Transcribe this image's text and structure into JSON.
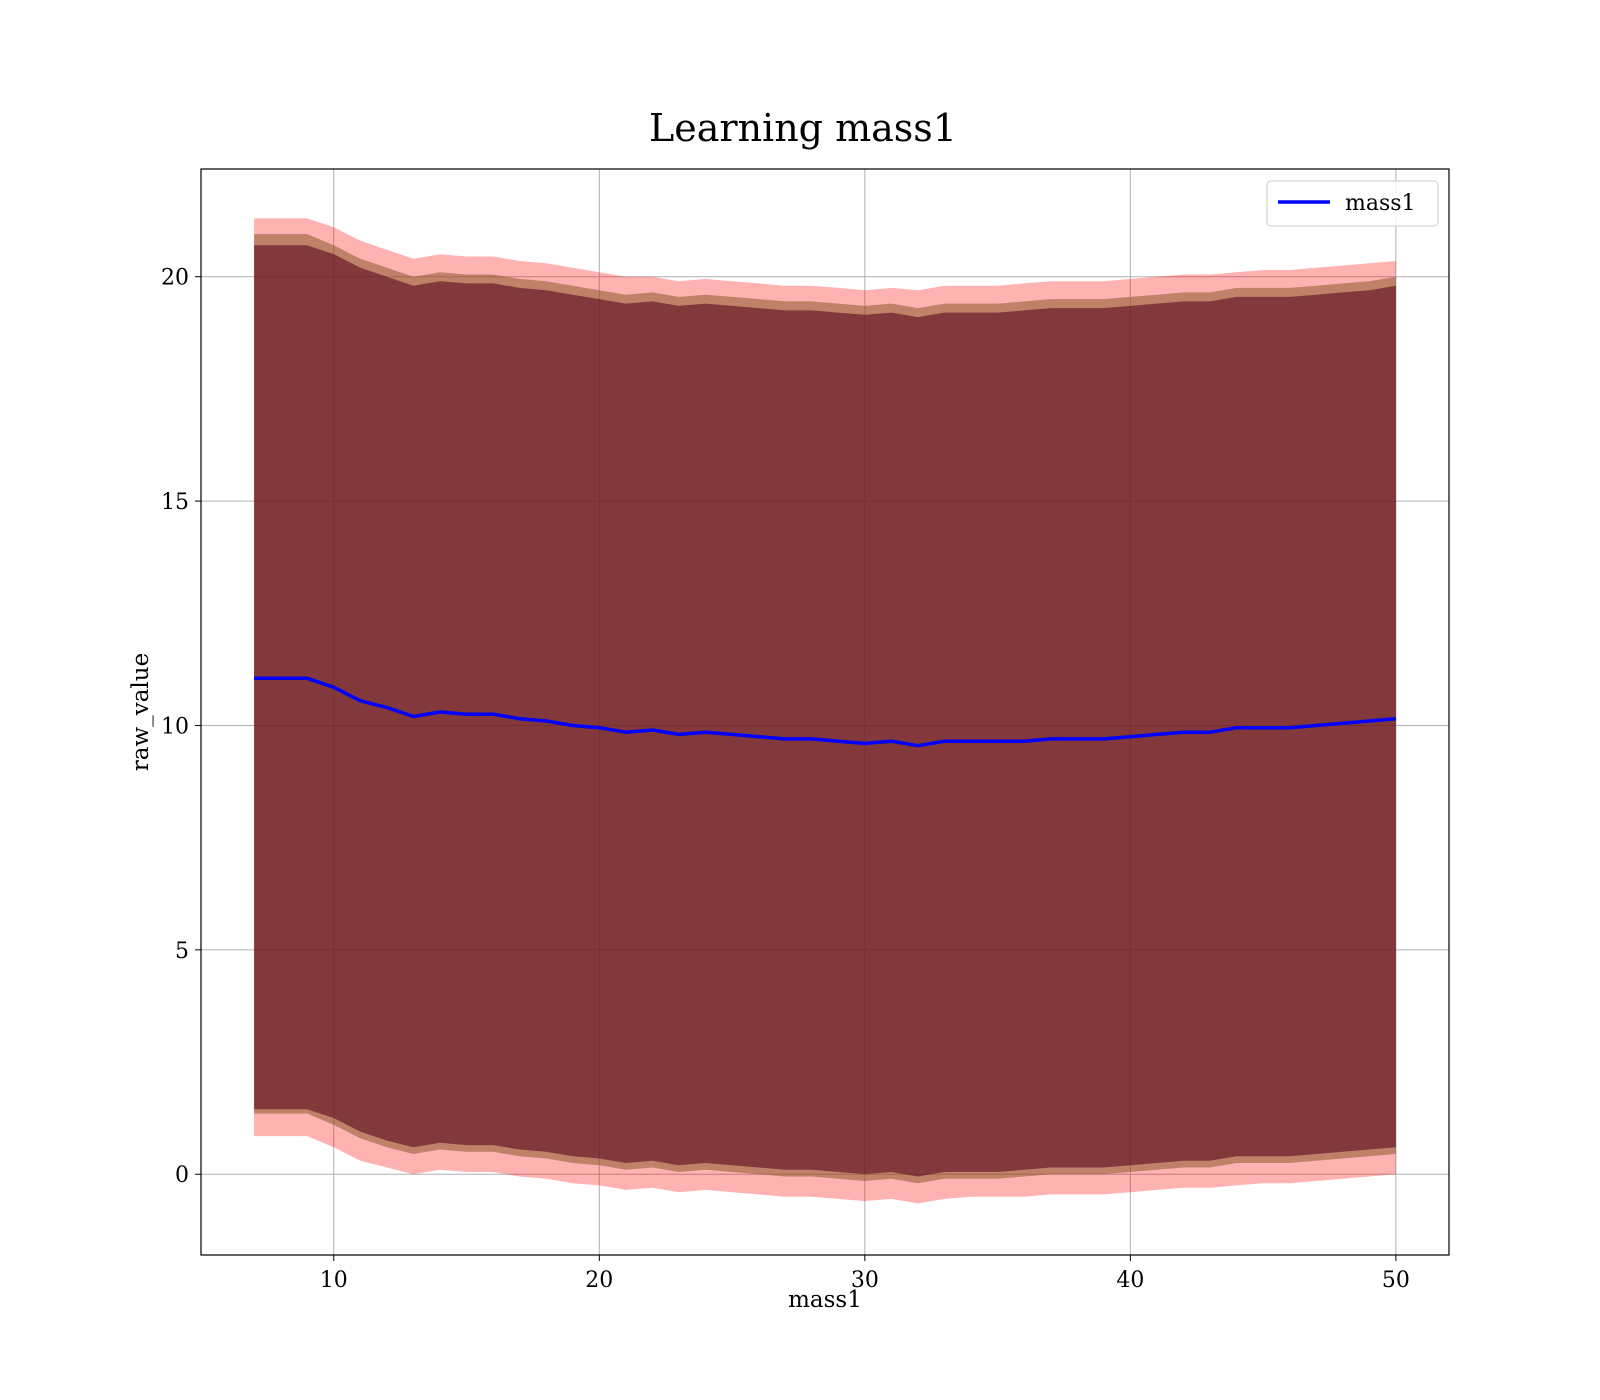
{
  "chart_data": {
    "type": "line",
    "title": "Learning mass1",
    "xlabel": "mass1",
    "ylabel": "raw_value",
    "xlim": [
      5,
      52
    ],
    "ylim": [
      -1.8,
      22.4
    ],
    "x_ticks": [
      10,
      20,
      30,
      40,
      50
    ],
    "y_ticks": [
      0,
      5,
      10,
      15,
      20
    ],
    "grid": true,
    "legend_position": "top-right",
    "colors": {
      "line": "#0000ff",
      "outer_band": "#ff0000",
      "middle_band": "#8b5a2b",
      "inner_band": "#5c0a1e",
      "grid": "#b0b0b0"
    },
    "series": [
      {
        "name": "mass1",
        "x": [
          7,
          8,
          9,
          10,
          11,
          12,
          13,
          14,
          15,
          16,
          17,
          18,
          19,
          20,
          21,
          22,
          23,
          24,
          25,
          26,
          27,
          28,
          29,
          30,
          31,
          32,
          33,
          34,
          35,
          36,
          37,
          38,
          39,
          40,
          41,
          42,
          43,
          44,
          45,
          46,
          47,
          48,
          49,
          50
        ],
        "y": [
          11.05,
          11.05,
          11.05,
          10.85,
          10.55,
          10.4,
          10.2,
          10.3,
          10.25,
          10.25,
          10.15,
          10.1,
          10.0,
          9.95,
          9.85,
          9.9,
          9.8,
          9.85,
          9.8,
          9.75,
          9.7,
          9.7,
          9.65,
          9.6,
          9.65,
          9.55,
          9.65,
          9.65,
          9.65,
          9.65,
          9.7,
          9.7,
          9.7,
          9.75,
          9.8,
          9.85,
          9.85,
          9.95,
          9.95,
          9.95,
          10.0,
          10.05,
          10.1,
          10.15
        ]
      }
    ],
    "bands": [
      {
        "level": "outer",
        "x": [
          7,
          8,
          9,
          10,
          11,
          12,
          13,
          14,
          15,
          16,
          17,
          18,
          19,
          20,
          21,
          22,
          23,
          24,
          25,
          26,
          27,
          28,
          29,
          30,
          31,
          32,
          33,
          34,
          35,
          36,
          37,
          38,
          39,
          40,
          41,
          42,
          43,
          44,
          45,
          46,
          47,
          48,
          49,
          50
        ],
        "upper": [
          21.3,
          21.3,
          21.3,
          21.1,
          20.8,
          20.6,
          20.4,
          20.5,
          20.45,
          20.45,
          20.35,
          20.3,
          20.2,
          20.1,
          20.0,
          20.0,
          19.9,
          19.95,
          19.9,
          19.85,
          19.8,
          19.8,
          19.75,
          19.7,
          19.75,
          19.7,
          19.8,
          19.8,
          19.8,
          19.85,
          19.9,
          19.9,
          19.9,
          19.95,
          20.0,
          20.05,
          20.05,
          20.1,
          20.15,
          20.15,
          20.2,
          20.25,
          20.3,
          20.35
        ],
        "lower": [
          0.85,
          0.85,
          0.85,
          0.6,
          0.3,
          0.15,
          0.0,
          0.1,
          0.05,
          0.05,
          -0.05,
          -0.1,
          -0.2,
          -0.25,
          -0.35,
          -0.3,
          -0.4,
          -0.35,
          -0.4,
          -0.45,
          -0.5,
          -0.5,
          -0.55,
          -0.6,
          -0.55,
          -0.65,
          -0.55,
          -0.5,
          -0.5,
          -0.5,
          -0.45,
          -0.45,
          -0.45,
          -0.4,
          -0.35,
          -0.3,
          -0.3,
          -0.25,
          -0.2,
          -0.2,
          -0.15,
          -0.1,
          -0.05,
          0.0
        ]
      },
      {
        "level": "middle",
        "x": [
          7,
          8,
          9,
          10,
          11,
          12,
          13,
          14,
          15,
          16,
          17,
          18,
          19,
          20,
          21,
          22,
          23,
          24,
          25,
          26,
          27,
          28,
          29,
          30,
          31,
          32,
          33,
          34,
          35,
          36,
          37,
          38,
          39,
          40,
          41,
          42,
          43,
          44,
          45,
          46,
          47,
          48,
          49,
          50
        ],
        "upper": [
          20.95,
          20.95,
          20.95,
          20.7,
          20.4,
          20.2,
          20.0,
          20.1,
          20.05,
          20.05,
          19.95,
          19.9,
          19.8,
          19.7,
          19.6,
          19.65,
          19.55,
          19.6,
          19.55,
          19.5,
          19.45,
          19.45,
          19.4,
          19.35,
          19.4,
          19.3,
          19.4,
          19.4,
          19.4,
          19.45,
          19.5,
          19.5,
          19.5,
          19.55,
          19.6,
          19.65,
          19.65,
          19.75,
          19.75,
          19.75,
          19.8,
          19.85,
          19.9,
          20.0
        ],
        "lower": [
          1.35,
          1.35,
          1.35,
          1.1,
          0.8,
          0.6,
          0.45,
          0.55,
          0.5,
          0.5,
          0.4,
          0.35,
          0.25,
          0.2,
          0.1,
          0.15,
          0.05,
          0.1,
          0.05,
          0.0,
          -0.05,
          -0.05,
          -0.1,
          -0.15,
          -0.1,
          -0.2,
          -0.1,
          -0.1,
          -0.1,
          -0.05,
          0.0,
          0.0,
          0.0,
          0.05,
          0.1,
          0.15,
          0.15,
          0.25,
          0.25,
          0.25,
          0.3,
          0.35,
          0.4,
          0.45
        ]
      },
      {
        "level": "inner",
        "x": [
          7,
          8,
          9,
          10,
          11,
          12,
          13,
          14,
          15,
          16,
          17,
          18,
          19,
          20,
          21,
          22,
          23,
          24,
          25,
          26,
          27,
          28,
          29,
          30,
          31,
          32,
          33,
          34,
          35,
          36,
          37,
          38,
          39,
          40,
          41,
          42,
          43,
          44,
          45,
          46,
          47,
          48,
          49,
          50
        ],
        "upper": [
          20.7,
          20.7,
          20.7,
          20.5,
          20.2,
          20.0,
          19.8,
          19.9,
          19.85,
          19.85,
          19.75,
          19.7,
          19.6,
          19.5,
          19.4,
          19.45,
          19.35,
          19.4,
          19.35,
          19.3,
          19.25,
          19.25,
          19.2,
          19.15,
          19.2,
          19.1,
          19.2,
          19.2,
          19.2,
          19.25,
          19.3,
          19.3,
          19.3,
          19.35,
          19.4,
          19.45,
          19.45,
          19.55,
          19.55,
          19.55,
          19.6,
          19.65,
          19.7,
          19.8
        ],
        "lower": [
          1.45,
          1.45,
          1.45,
          1.25,
          0.95,
          0.75,
          0.6,
          0.7,
          0.65,
          0.65,
          0.55,
          0.5,
          0.4,
          0.35,
          0.25,
          0.3,
          0.2,
          0.25,
          0.2,
          0.15,
          0.1,
          0.1,
          0.05,
          0.0,
          0.05,
          -0.05,
          0.05,
          0.05,
          0.05,
          0.1,
          0.15,
          0.15,
          0.15,
          0.2,
          0.25,
          0.3,
          0.3,
          0.4,
          0.4,
          0.4,
          0.45,
          0.5,
          0.55,
          0.6
        ]
      }
    ]
  }
}
